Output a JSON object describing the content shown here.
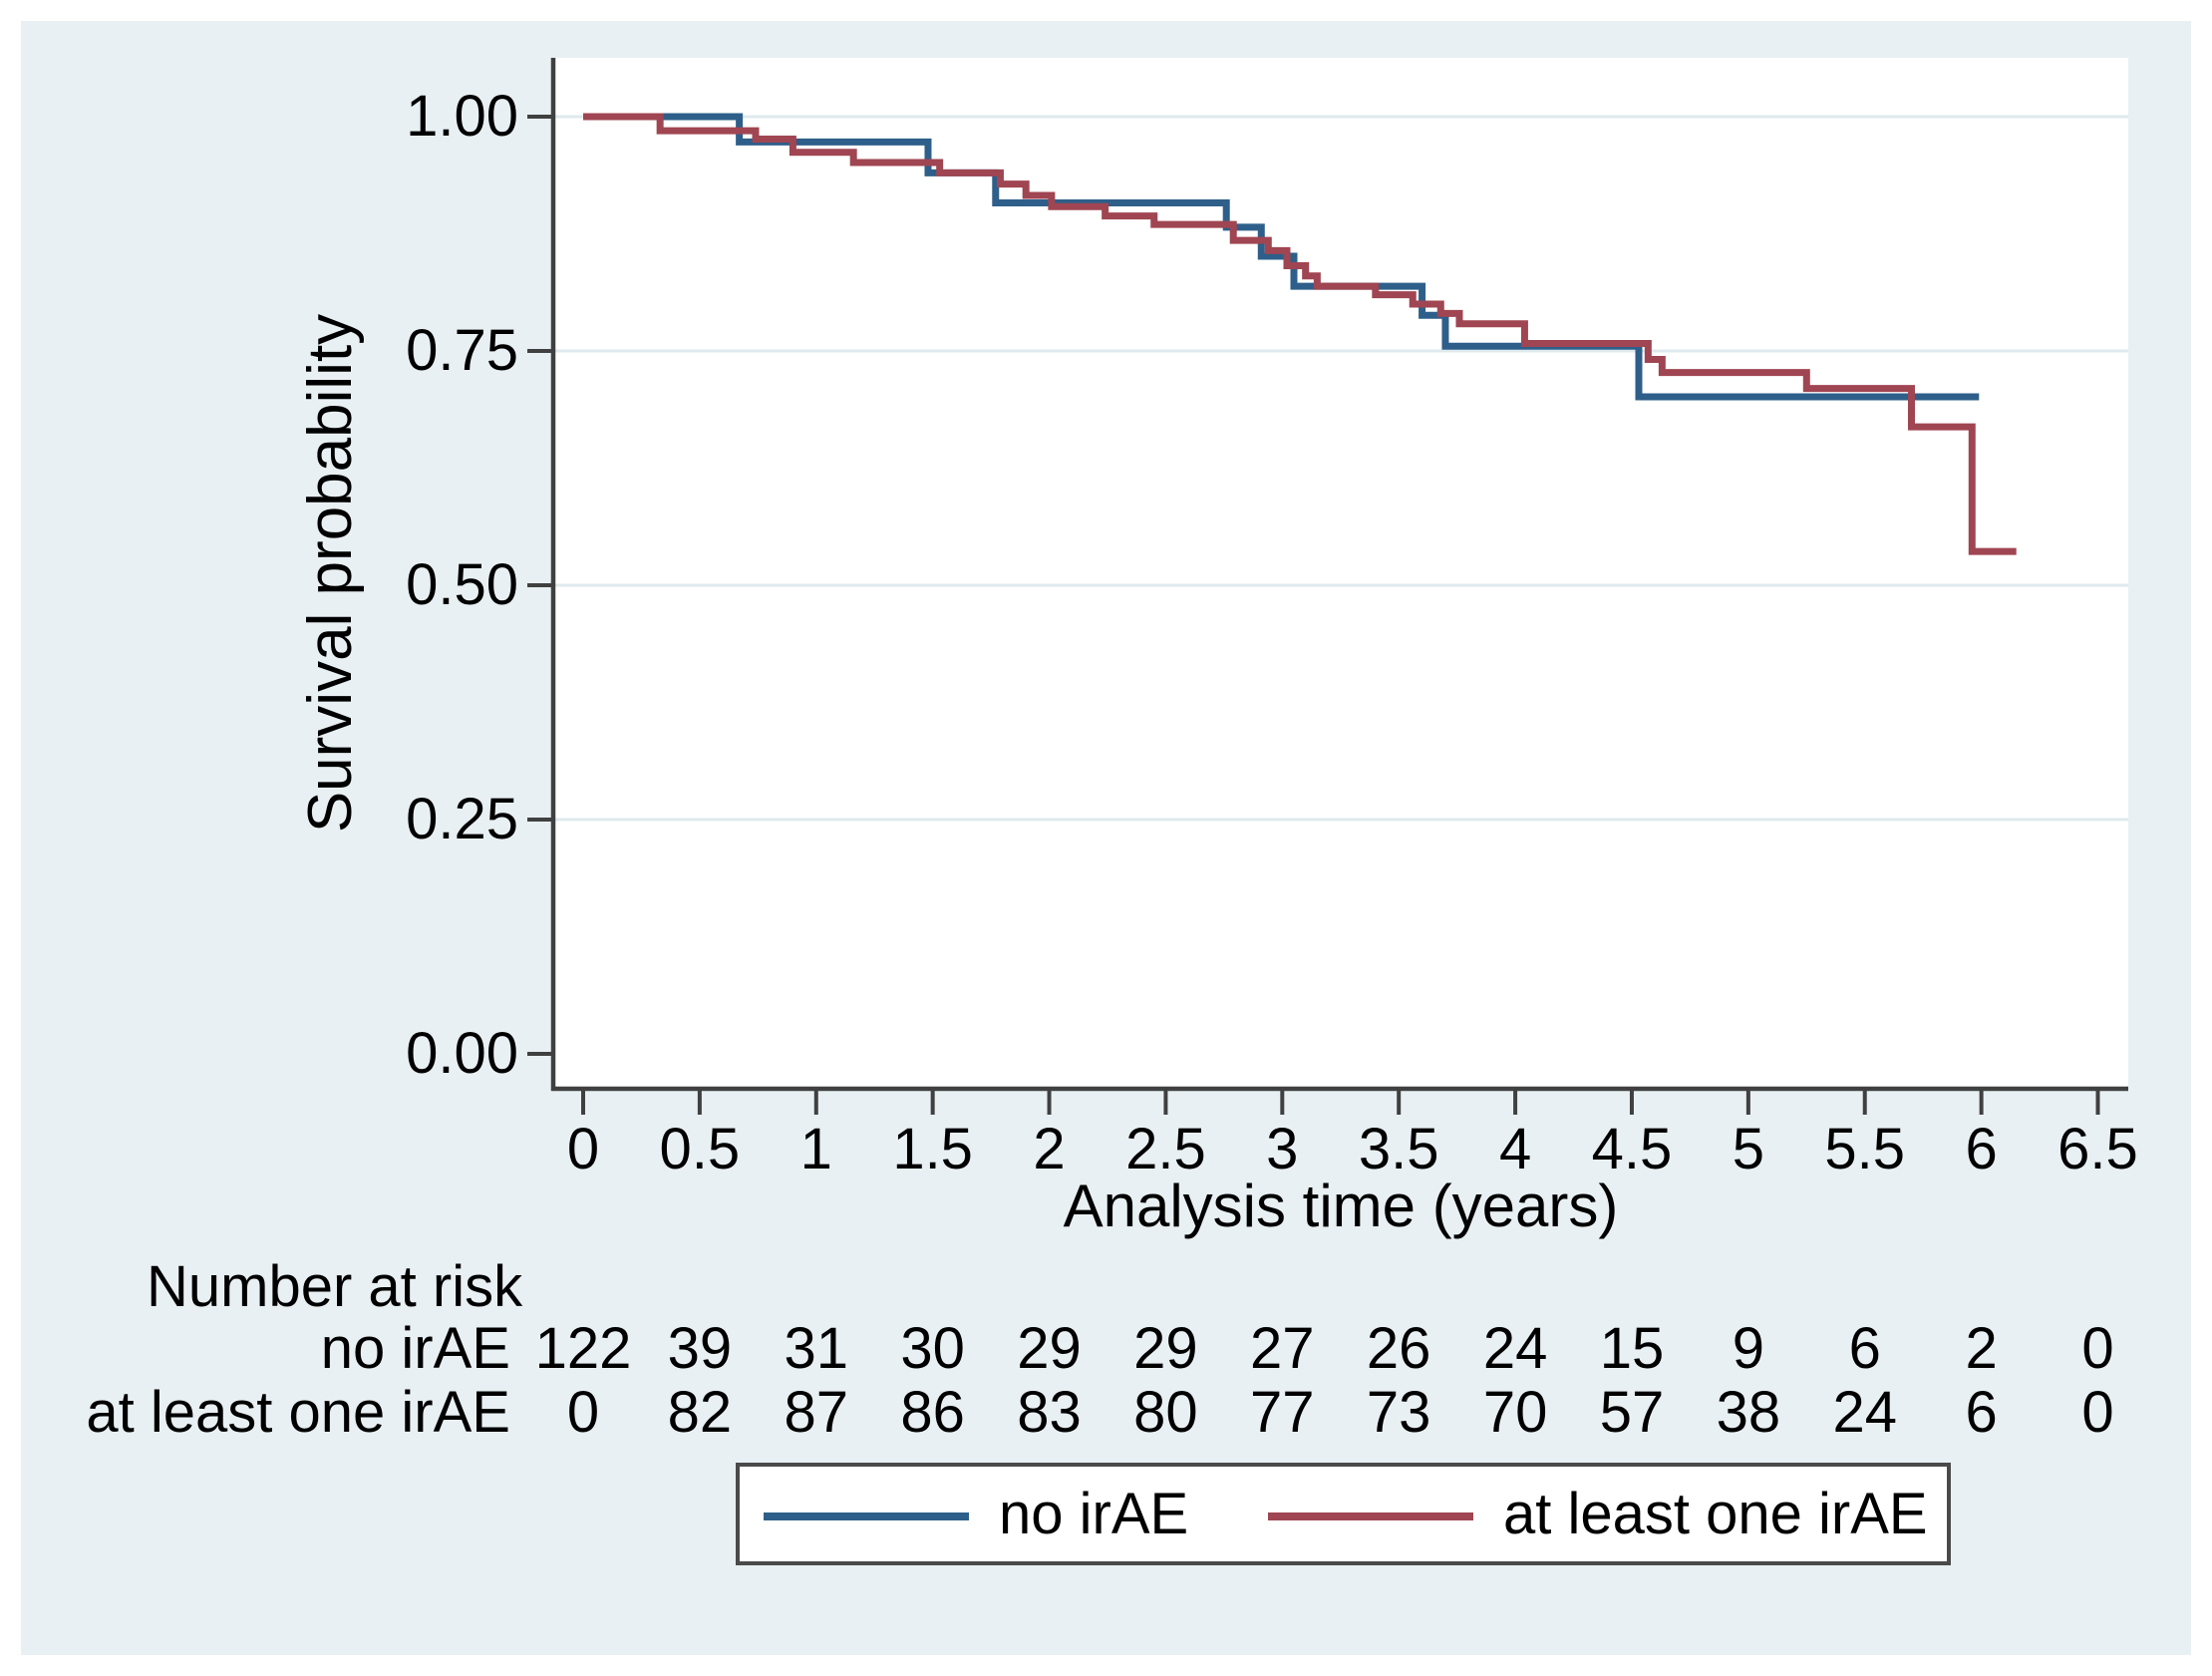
{
  "colors": {
    "panel_background": "#e9f0f3",
    "plot_background": "#ffffff",
    "gridline": "#dfeaee",
    "axis": "#404040",
    "text": "#000000",
    "legend_border": "#4a4a4a",
    "series_no_irae": "#2e5f8a",
    "series_at_least_one_irae": "#a04552"
  },
  "chart_data": {
    "type": "line",
    "subtype": "kaplan-meier-step",
    "title": "",
    "xlabel": "Analysis time (years)",
    "ylabel": "Survival probability",
    "xlim": [
      0,
      6.5
    ],
    "ylim": [
      0.0,
      1.0
    ],
    "grid": "horizontal-only",
    "legend_position": "bottom-center",
    "xticks": [
      {
        "t": 0,
        "label": "0"
      },
      {
        "t": 0.5,
        "label": "0.5"
      },
      {
        "t": 1,
        "label": "1"
      },
      {
        "t": 1.5,
        "label": "1.5"
      },
      {
        "t": 2,
        "label": "2"
      },
      {
        "t": 2.5,
        "label": "2.5"
      },
      {
        "t": 3,
        "label": "3"
      },
      {
        "t": 3.5,
        "label": "3.5"
      },
      {
        "t": 4,
        "label": "4"
      },
      {
        "t": 4.5,
        "label": "4.5"
      },
      {
        "t": 5,
        "label": "5"
      },
      {
        "t": 5.5,
        "label": "5.5"
      },
      {
        "t": 6,
        "label": "6"
      },
      {
        "t": 6.5,
        "label": "6.5"
      }
    ],
    "yticks": [
      {
        "s": 0.0,
        "label": "0.00"
      },
      {
        "s": 0.25,
        "label": "0.25"
      },
      {
        "s": 0.5,
        "label": "0.50"
      },
      {
        "s": 0.75,
        "label": "0.75"
      },
      {
        "s": 1.0,
        "label": "1.00"
      }
    ],
    "gridlines_at": [
      0.25,
      0.5,
      0.75,
      1.0
    ],
    "series": [
      {
        "name": "no irAE",
        "color": "#2e5f8a",
        "end_t": 5.99,
        "points": [
          [
            0.0,
            1.0
          ],
          [
            0.67,
            0.973
          ],
          [
            1.48,
            0.94
          ],
          [
            1.77,
            0.908
          ],
          [
            2.76,
            0.882
          ],
          [
            2.91,
            0.851
          ],
          [
            3.05,
            0.819
          ],
          [
            3.6,
            0.788
          ],
          [
            3.7,
            0.755
          ],
          [
            4.53,
            0.701
          ]
        ]
      },
      {
        "name": "at least one irAE",
        "color": "#a04552",
        "end_t": 6.15,
        "points": [
          [
            0.0,
            1.0
          ],
          [
            0.33,
            0.985
          ],
          [
            0.74,
            0.976
          ],
          [
            0.9,
            0.962
          ],
          [
            1.16,
            0.951
          ],
          [
            1.53,
            0.94
          ],
          [
            1.79,
            0.928
          ],
          [
            1.9,
            0.916
          ],
          [
            2.01,
            0.904
          ],
          [
            2.24,
            0.894
          ],
          [
            2.45,
            0.885
          ],
          [
            2.79,
            0.868
          ],
          [
            2.94,
            0.857
          ],
          [
            3.02,
            0.841
          ],
          [
            3.1,
            0.83
          ],
          [
            3.15,
            0.819
          ],
          [
            3.4,
            0.81
          ],
          [
            3.56,
            0.8
          ],
          [
            3.68,
            0.79
          ],
          [
            3.76,
            0.779
          ],
          [
            4.04,
            0.758
          ],
          [
            4.57,
            0.741
          ],
          [
            4.63,
            0.727
          ],
          [
            5.25,
            0.71
          ],
          [
            5.7,
            0.669
          ],
          [
            5.96,
            0.536
          ]
        ]
      }
    ],
    "risk_table": {
      "header": "Number at risk",
      "times": [
        0,
        0.5,
        1,
        1.5,
        2,
        2.5,
        3,
        3.5,
        4,
        4.5,
        5,
        5.5,
        6,
        6.5
      ],
      "rows": [
        {
          "label": "no irAE",
          "values": [
            "122",
            "39",
            "31",
            "30",
            "29",
            "29",
            "27",
            "26",
            "24",
            "15",
            "9",
            "6",
            "2",
            "0"
          ]
        },
        {
          "label": "at least one irAE",
          "values": [
            "0",
            "82",
            "87",
            "86",
            "83",
            "80",
            "77",
            "73",
            "70",
            "57",
            "38",
            "24",
            "6",
            "0"
          ]
        }
      ]
    },
    "legend": {
      "entries": [
        "no irAE",
        "at least one irAE"
      ]
    }
  }
}
